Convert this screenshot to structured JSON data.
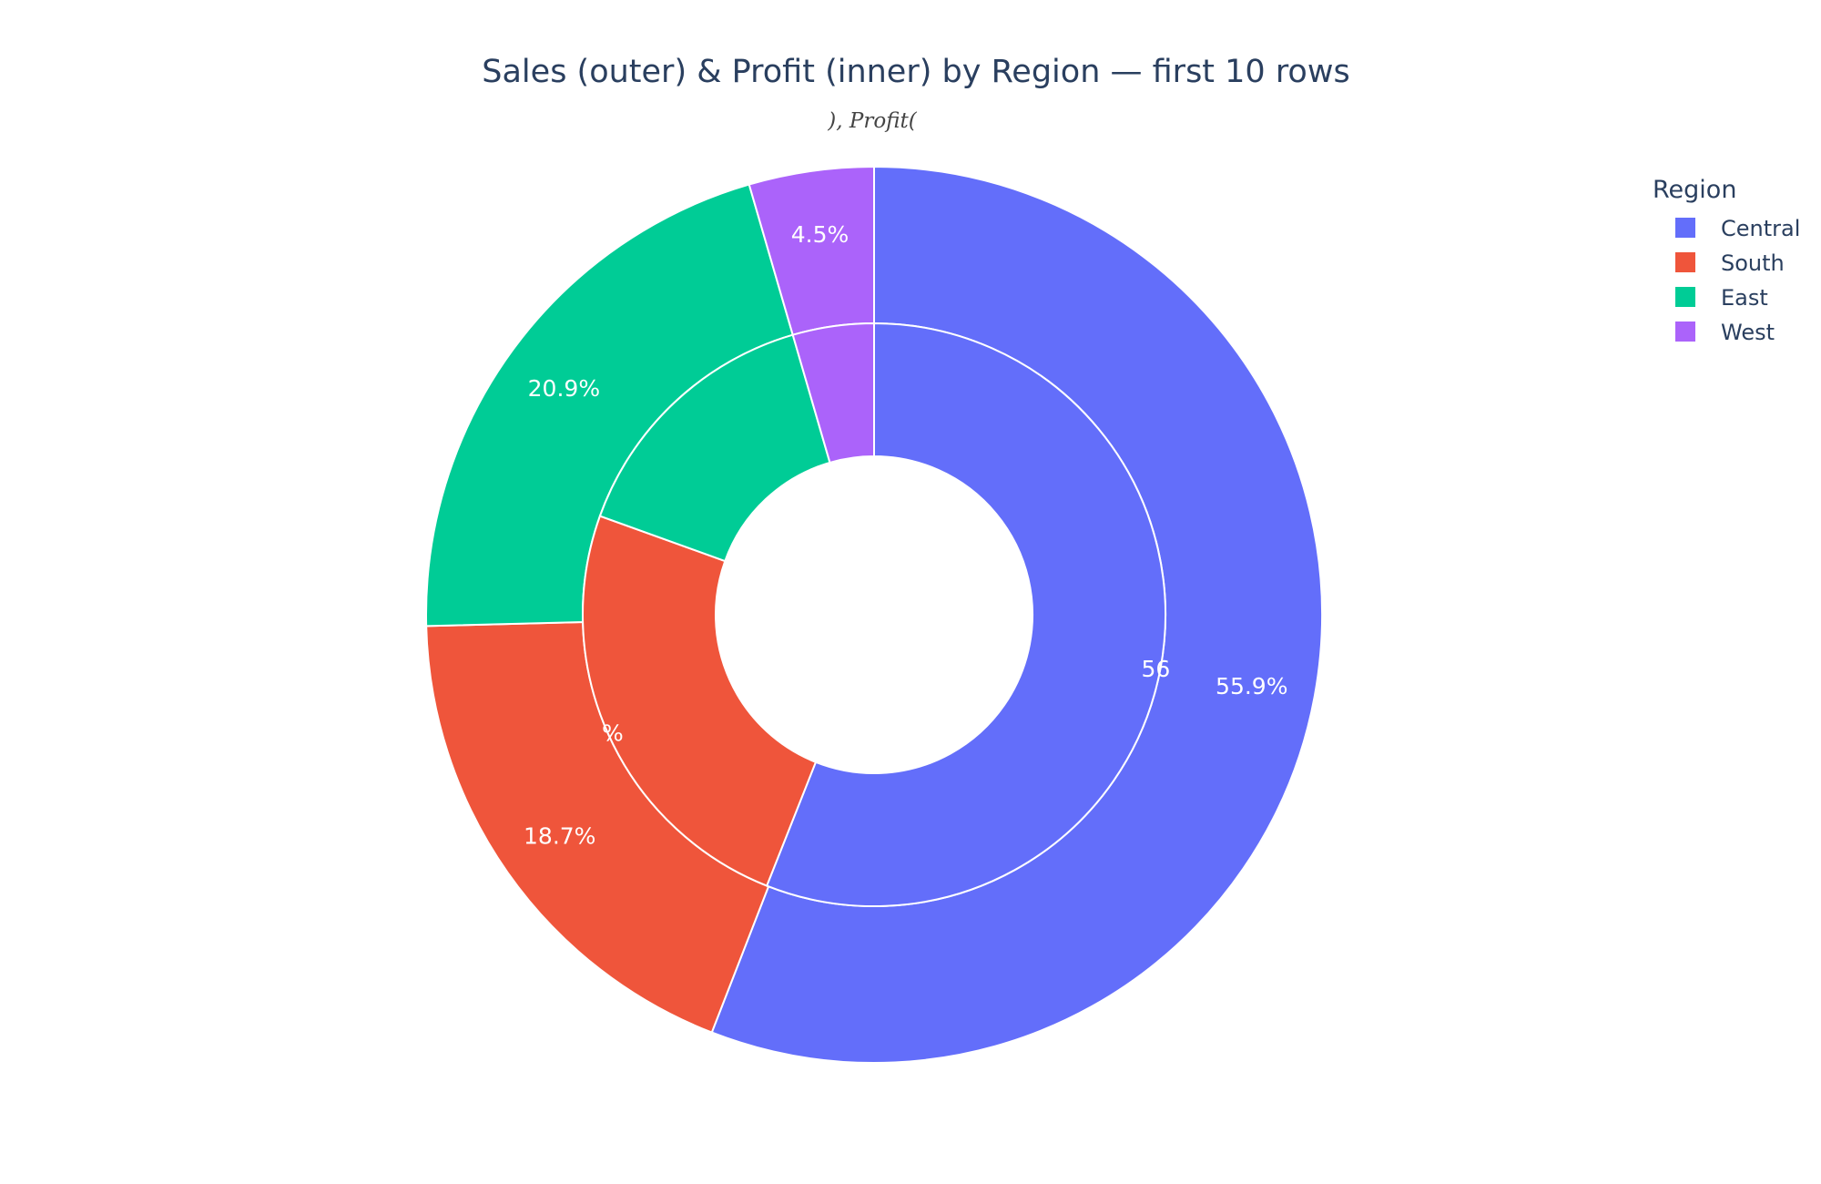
{
  "chart_data": {
    "type": "pie",
    "title": "Sales (outer) & Profit (inner) by Region — first 10 rows",
    "subtitle": "), Profit(",
    "legend": {
      "title": "Region",
      "placement": "right",
      "entries": [
        "Central",
        "South",
        "East",
        "West"
      ]
    },
    "colors": {
      "Central": "#636efa",
      "South": "#ef553b",
      "East": "#00cc96",
      "West": "#ab63fa"
    },
    "series": [
      {
        "ring": "outer",
        "categories": [
          "Central",
          "South",
          "East",
          "West"
        ],
        "values": [
          55.9,
          18.7,
          20.9,
          4.5
        ],
        "labels": [
          "55.9%",
          "18.7%",
          "20.9%",
          "4.5%"
        ]
      },
      {
        "ring": "inner",
        "categories": [
          "Central",
          "South",
          "East",
          "West"
        ],
        "values": [
          56,
          24.5,
          15,
          4.5
        ],
        "labels": [
          "56",
          "%",
          "",
          ""
        ]
      }
    ]
  }
}
